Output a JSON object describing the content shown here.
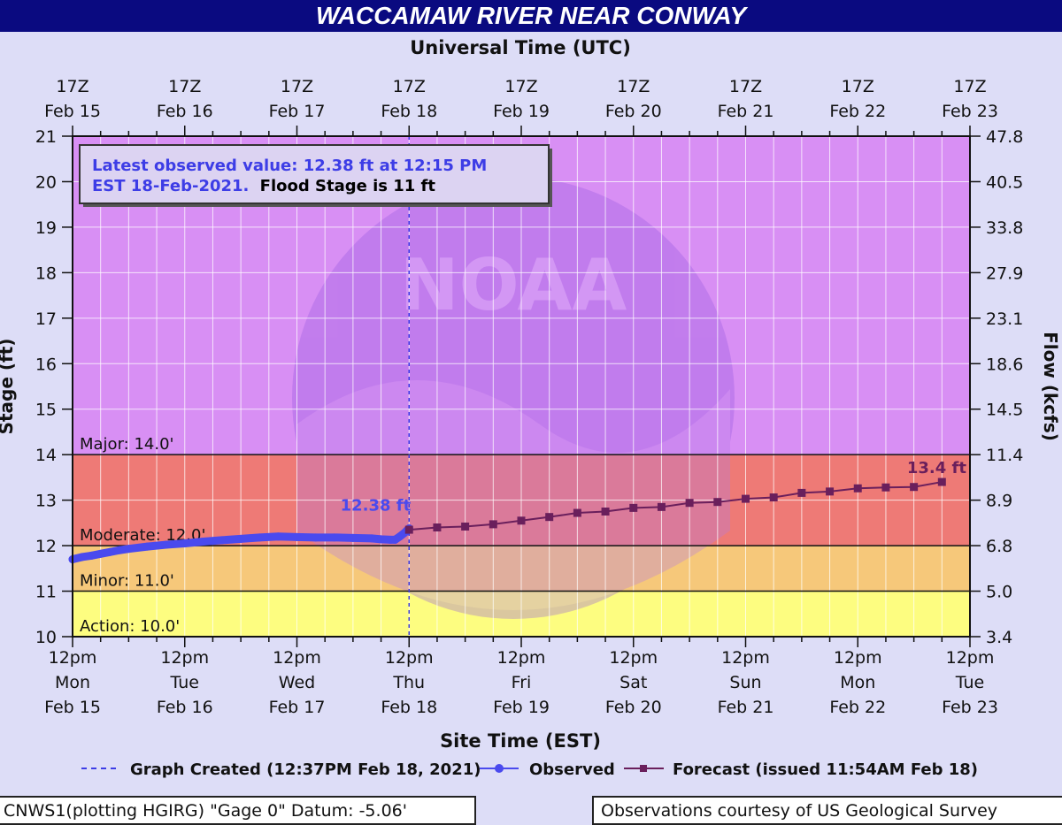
{
  "chart_data": {
    "type": "line",
    "title": "WACCAMAW RIVER NEAR CONWAY",
    "top_axis_title": "Universal Time (UTC)",
    "top_ticks": [
      {
        "t": 0,
        "l1": "17Z",
        "l2": "Feb 15"
      },
      {
        "t": 24,
        "l1": "17Z",
        "l2": "Feb 16"
      },
      {
        "t": 48,
        "l1": "17Z",
        "l2": "Feb 17"
      },
      {
        "t": 72,
        "l1": "17Z",
        "l2": "Feb 18"
      },
      {
        "t": 96,
        "l1": "17Z",
        "l2": "Feb 19"
      },
      {
        "t": 120,
        "l1": "17Z",
        "l2": "Feb 20"
      },
      {
        "t": 144,
        "l1": "17Z",
        "l2": "Feb 21"
      },
      {
        "t": 168,
        "l1": "17Z",
        "l2": "Feb 22"
      },
      {
        "t": 192,
        "l1": "17Z",
        "l2": "Feb 23"
      }
    ],
    "bottom_ticks": [
      {
        "t": 0,
        "l1": "12pm",
        "l2": "Mon",
        "l3": "Feb 15"
      },
      {
        "t": 24,
        "l1": "12pm",
        "l2": "Tue",
        "l3": "Feb 16"
      },
      {
        "t": 48,
        "l1": "12pm",
        "l2": "Wed",
        "l3": "Feb 17"
      },
      {
        "t": 72,
        "l1": "12pm",
        "l2": "Thu",
        "l3": "Feb 18"
      },
      {
        "t": 96,
        "l1": "12pm",
        "l2": "Fri",
        "l3": "Feb 19"
      },
      {
        "t": 120,
        "l1": "12pm",
        "l2": "Sat",
        "l3": "Feb 20"
      },
      {
        "t": 144,
        "l1": "12pm",
        "l2": "Sun",
        "l3": "Feb 21"
      },
      {
        "t": 168,
        "l1": "12pm",
        "l2": "Mon",
        "l3": "Feb 22"
      },
      {
        "t": 192,
        "l1": "12pm",
        "l2": "Tue",
        "l3": "Feb 23"
      }
    ],
    "xlabel": "Site Time (EST)",
    "xlim_hours": [
      0,
      192
    ],
    "ylabel": "Stage (ft)",
    "ylim": [
      10,
      21
    ],
    "y_ticks": [
      10,
      11,
      12,
      13,
      14,
      15,
      16,
      17,
      18,
      19,
      20,
      21
    ],
    "y2label": "Flow (kcfs)",
    "y2_ticks": [
      {
        "stage": 10,
        "label": "3.4"
      },
      {
        "stage": 11,
        "label": "5.0"
      },
      {
        "stage": 12,
        "label": "6.8"
      },
      {
        "stage": 13,
        "label": "8.9"
      },
      {
        "stage": 14,
        "label": "11.4"
      },
      {
        "stage": 15,
        "label": "14.5"
      },
      {
        "stage": 16,
        "label": "18.6"
      },
      {
        "stage": 17,
        "label": "23.1"
      },
      {
        "stage": 18,
        "label": "27.9"
      },
      {
        "stage": 19,
        "label": "33.8"
      },
      {
        "stage": 20,
        "label": "40.5"
      },
      {
        "stage": 21,
        "label": "47.8"
      }
    ],
    "bands": [
      {
        "name": "Action",
        "from": 10,
        "to": 11,
        "color": "#fdfd80",
        "label": "Action: 10.0'"
      },
      {
        "name": "Minor",
        "from": 11,
        "to": 12,
        "color": "#f6c87a",
        "label": "Minor: 11.0'"
      },
      {
        "name": "Moderate",
        "from": 12,
        "to": 14,
        "color": "#ee7a76",
        "label": "Moderate: 12.0'"
      },
      {
        "name": "Major",
        "from": 14,
        "to": 21,
        "color": "#d88ff4",
        "label": "Major: 14.0'"
      }
    ],
    "series": [
      {
        "name": "Observed",
        "color": "#4a4aee",
        "x": [
          0,
          2,
          4,
          6,
          8,
          10,
          12,
          16,
          20,
          24,
          28,
          32,
          36,
          40,
          44,
          48,
          52,
          56,
          60,
          64,
          66,
          68,
          69,
          70,
          71,
          71.5,
          72
        ],
        "y": [
          11.7,
          11.75,
          11.78,
          11.82,
          11.86,
          11.9,
          11.93,
          11.98,
          12.02,
          12.05,
          12.09,
          12.12,
          12.15,
          12.18,
          12.2,
          12.19,
          12.18,
          12.18,
          12.17,
          12.16,
          12.14,
          12.13,
          12.13,
          12.2,
          12.28,
          12.33,
          12.38
        ]
      },
      {
        "name": "Forecast (issued 11:54AM Feb 18)",
        "color": "#6a1f5c",
        "x": [
          72,
          78,
          84,
          90,
          96,
          102,
          108,
          114,
          120,
          126,
          132,
          138,
          144,
          150,
          156,
          162,
          168,
          174,
          180,
          186
        ],
        "y": [
          12.35,
          12.4,
          12.42,
          12.47,
          12.55,
          12.63,
          12.72,
          12.75,
          12.83,
          12.85,
          12.94,
          12.96,
          13.03,
          13.06,
          13.16,
          13.19,
          13.26,
          13.28,
          13.29,
          13.4
        ]
      }
    ],
    "annotations": {
      "observed_label": "12.38 ft",
      "forecast_label": "13.4 ft",
      "info_line1": "Latest observed value: 12.38 ft at 12:15 PM",
      "info_line2": "EST 18-Feb-2021.",
      "info_flood": "Flood Stage is 11 ft"
    },
    "graph_created_hour": 72,
    "legend": {
      "position": "bottom",
      "graph_created": "Graph Created (12:37PM Feb 18, 2021)",
      "observed": "Observed",
      "forecast": "Forecast (issued 11:54AM Feb 18)"
    },
    "watermark": "NOAA"
  },
  "footer": {
    "left": "CNWS1(plotting HGIRG) \"Gage 0\" Datum: -5.06'",
    "right": "Observations courtesy of US Geological Survey"
  }
}
